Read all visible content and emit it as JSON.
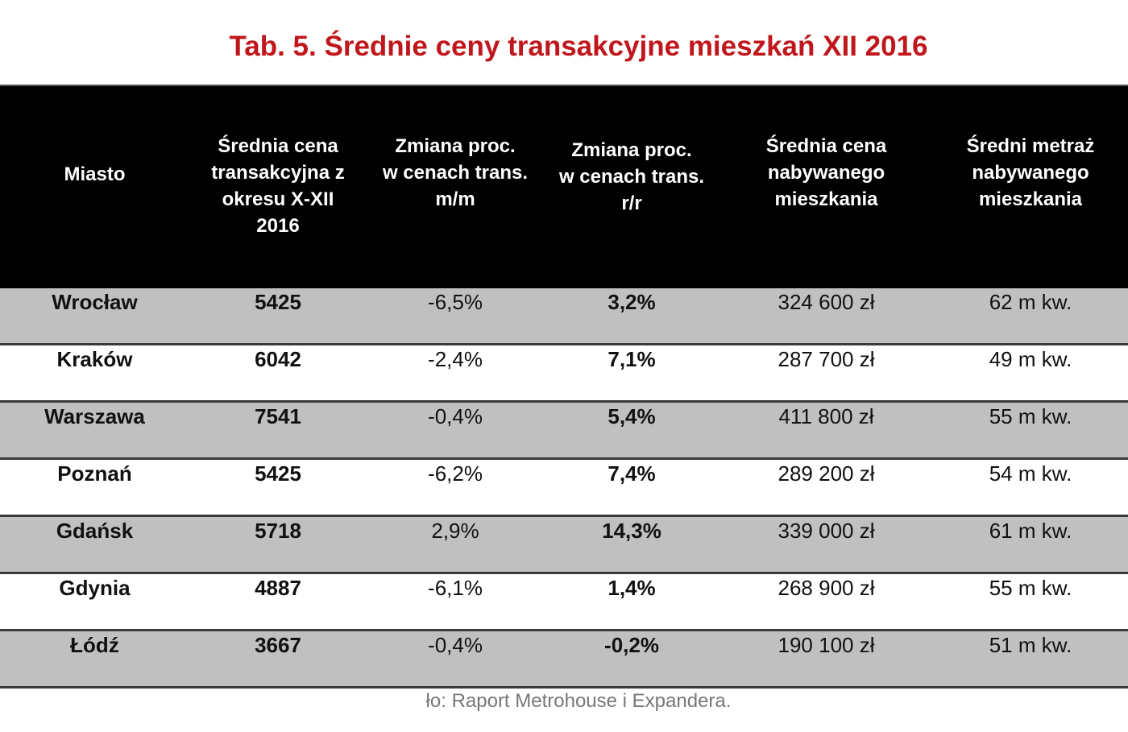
{
  "header": {
    "title": "Tab. 5. Średnie ceny transakcyjne mieszkań XII 2016"
  },
  "table": {
    "headers": [
      [
        "Miasto"
      ],
      [
        "Średnia cena",
        "transakcyjna z",
        "okresu X-XII",
        "2016"
      ],
      [
        "Zmiana proc.",
        "w cenach trans.",
        "m/m"
      ],
      [
        "Zmiana proc.",
        "w cenach trans.",
        "r/r"
      ],
      [
        "Średnia cena",
        "nabywanego",
        "mieszkania"
      ],
      [
        "Średni metraż",
        "nabywanego",
        "mieszkania"
      ]
    ],
    "rows": [
      [
        "Wrocław",
        "5425",
        "-6,5%",
        "3,2%",
        "324 600 zł",
        "62 m kw."
      ],
      [
        "Kraków",
        "6042",
        "-2,4%",
        "7,1%",
        "287 700 zł",
        "49 m kw."
      ],
      [
        "Warszawa",
        "7541",
        "-0,4%",
        "5,4%",
        "411 800 zł",
        "55 m kw."
      ],
      [
        "Poznań",
        "5425",
        "-6,2%",
        "7,4%",
        "289 200 zł",
        "54 m kw."
      ],
      [
        "Gdańsk",
        "5718",
        "2,9%",
        "14,3%",
        "339 000 zł",
        "61 m kw."
      ],
      [
        "Gdynia",
        "4887",
        "-6,1%",
        "1,4%",
        "268 900 zł",
        "55 m kw."
      ],
      [
        "Łódź",
        "3667",
        "-0,4%",
        "-0,2%",
        "190 100 zł",
        "51 m kw."
      ]
    ]
  },
  "footer": {
    "source": "ło: Raport Metrohouse i Expandera."
  }
}
